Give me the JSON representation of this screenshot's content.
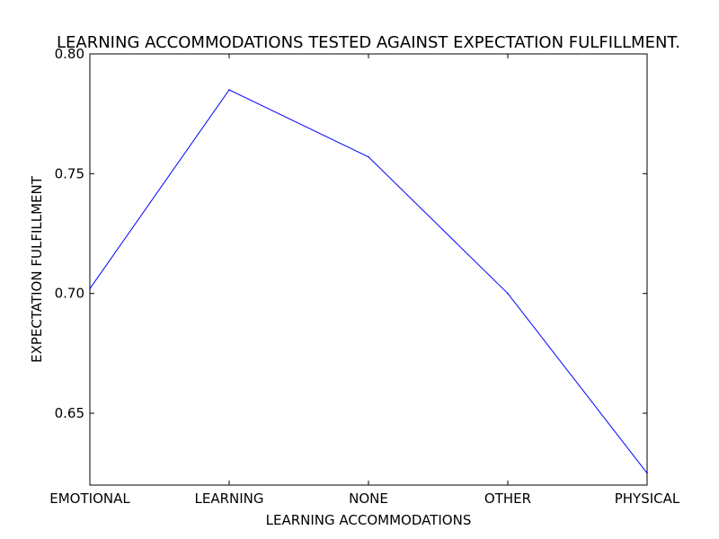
{
  "chart_data": {
    "type": "line",
    "title": "LEARNING ACCOMMODATIONS TESTED AGAINST EXPECTATION FULFILLMENT.",
    "xlabel": "LEARNING ACCOMMODATIONS",
    "ylabel": "EXPECTATION FULFILLMENT",
    "categories": [
      "EMOTIONAL",
      "LEARNING",
      "NONE",
      "OTHER",
      "PHYSICAL"
    ],
    "series": [
      {
        "values": [
          0.702,
          0.785,
          0.757,
          0.7,
          0.625
        ],
        "color": "#0000ff"
      }
    ],
    "ylim": [
      0.62,
      0.8
    ],
    "yticks": [
      0.65,
      0.7,
      0.75,
      0.8
    ],
    "ytick_labels": [
      "0.65",
      "0.70",
      "0.75",
      "0.80"
    ],
    "grid": false,
    "legend": "none"
  }
}
